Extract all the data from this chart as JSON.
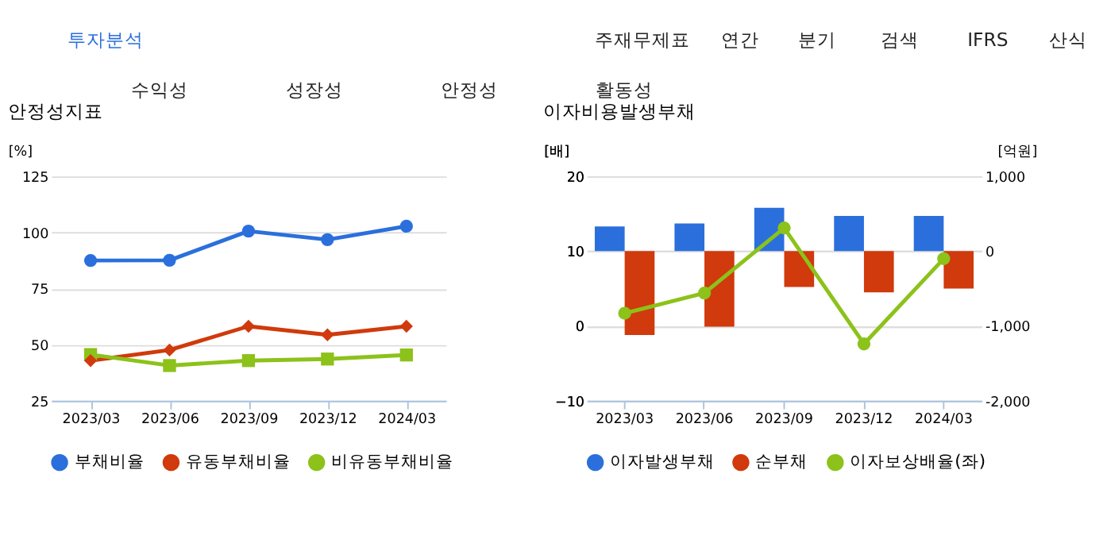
{
  "chart_data": [
    {
      "type": "other",
      "annotations": [
        "투자분석",
        "주재무제표",
        "연간",
        "분기",
        "검색",
        "IFRS",
        "산식",
        "수익성",
        "성장성",
        "안정성",
        "활동성"
      ]
    },
    {
      "type": "line",
      "title": "안정성지표",
      "ylabel": "[%]",
      "categories": [
        "2023/03",
        "2023/06",
        "2023/09",
        "2023/12",
        "2024/03"
      ],
      "ylim": [
        25,
        125
      ],
      "yticks": [
        25,
        50,
        75,
        100,
        125
      ],
      "grid": "y",
      "legend": "bottom",
      "series": [
        {
          "name": "부채비율",
          "color": "#2b6fdc",
          "marker": "circle",
          "values": [
            87.5,
            87.6,
            100.6,
            96.8,
            102.8
          ]
        },
        {
          "name": "유동부채비율",
          "color": "#d03a0c",
          "marker": "diamond",
          "values": [
            42.9,
            47.6,
            58.2,
            54.4,
            58.2
          ]
        },
        {
          "name": "비유동부채비율",
          "color": "#8cc21a",
          "marker": "square",
          "values": [
            45.6,
            40.7,
            42.9,
            43.6,
            45.4
          ]
        }
      ]
    },
    {
      "type": "bar",
      "title": "이자비용발생부채",
      "ylabel": "[배]",
      "y2label": "[억원]",
      "categories": [
        "2023/03",
        "2023/06",
        "2023/09",
        "2023/12",
        "2024/03"
      ],
      "ylim": [
        -10,
        20
      ],
      "yticks": [
        -10,
        0,
        10,
        20
      ],
      "y2lim": [
        -2000,
        1000
      ],
      "y2ticks": [
        {
          "value": -2000,
          "label": "-2,000"
        },
        {
          "value": -1000,
          "label": "-1,000"
        },
        0,
        {
          "value": 1000,
          "label": "1,000"
        }
      ],
      "grid": "y",
      "legend": "bottom",
      "series": [
        {
          "name": "이자발생부채",
          "color": "#2b6fdc",
          "axis": "y2",
          "values": [
            330,
            370,
            580,
            470,
            470
          ]
        },
        {
          "name": "순부채",
          "color": "#d03a0c",
          "axis": "y2",
          "values": [
            -1120,
            -1010,
            -480,
            -550,
            -500
          ]
        },
        {
          "name": "이자보상배율(좌)",
          "color": "#8cc21a",
          "type": "line",
          "marker": "circle",
          "axis": "y",
          "values": [
            1.7,
            4.4,
            13.1,
            -2.4,
            9.0
          ]
        }
      ]
    }
  ]
}
